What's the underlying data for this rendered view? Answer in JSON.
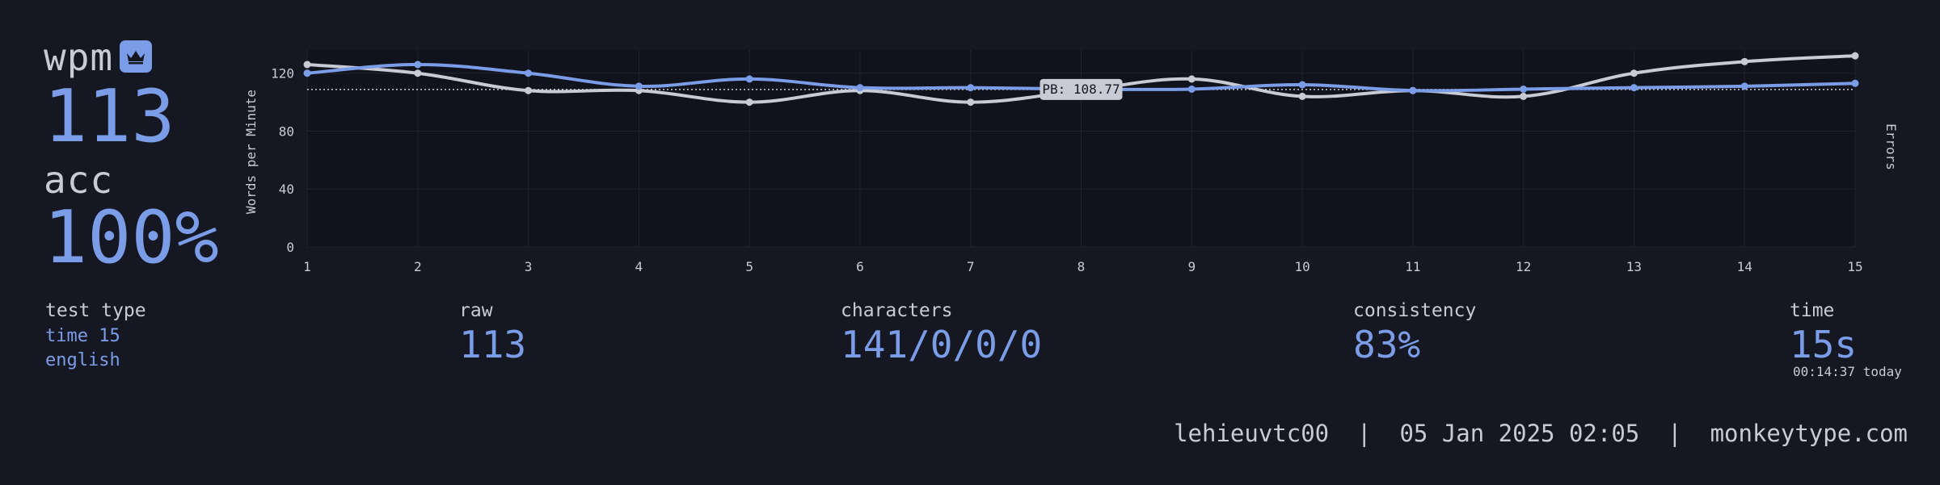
{
  "summary": {
    "wpm_label": "wpm",
    "wpm_value": "113",
    "acc_label": "acc",
    "acc_value": "100%"
  },
  "test_type": {
    "label": "test type",
    "mode": "time 15",
    "language": "english"
  },
  "stats": {
    "raw_label": "raw",
    "raw_value": "113",
    "characters_label": "characters",
    "characters_value": "141/0/0/0",
    "consistency_label": "consistency",
    "consistency_value": "83%",
    "time_label": "time",
    "time_value": "15s",
    "time_note": "00:14:37 today"
  },
  "footer": {
    "username": "lehieuvtc00",
    "date": "05 Jan 2025 02:05",
    "site": "monkeytype.com",
    "separator": "|"
  },
  "icons": {
    "badge": "crown-icon"
  },
  "colors": {
    "background": "#151823",
    "plot_background": "#11131c",
    "accent": "#7b9ce6",
    "text": "#c8cbd4",
    "raw_line": "#c8cbd4"
  },
  "chart_data": {
    "type": "line",
    "x": [
      1,
      2,
      3,
      4,
      5,
      6,
      7,
      8,
      9,
      10,
      11,
      12,
      13,
      14,
      15
    ],
    "x_ticks": [
      "1",
      "2",
      "3",
      "4",
      "5",
      "6",
      "7",
      "8",
      "9",
      "10",
      "11",
      "12",
      "13",
      "14",
      "15"
    ],
    "y_ticks": [
      "0",
      "40",
      "80",
      "120"
    ],
    "ylim": [
      0,
      136
    ],
    "xlim": [
      1,
      15
    ],
    "ylabel": "Words per Minute",
    "y2label": "Errors",
    "grid": true,
    "series": [
      {
        "key": "wpm",
        "color": "#7b9ce6",
        "values": [
          120,
          126,
          120,
          111,
          116,
          110,
          110,
          109,
          109,
          112,
          108,
          109,
          110,
          111,
          113
        ]
      },
      {
        "key": "raw",
        "color": "#c8cbd4",
        "values": [
          126,
          120,
          108,
          108,
          100,
          108,
          100,
          108,
          116,
          104,
          108,
          104,
          120,
          128,
          132
        ]
      }
    ],
    "pb_line": {
      "value": 108.77,
      "label": "PB: 108.77"
    }
  }
}
